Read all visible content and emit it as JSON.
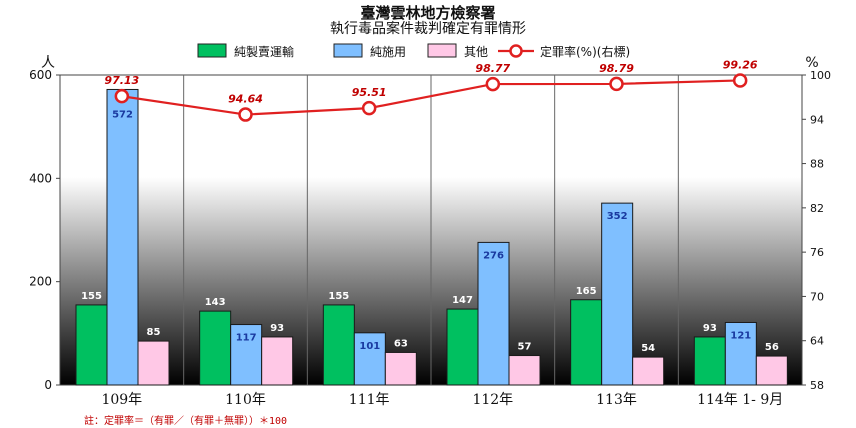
{
  "title": "臺灣雲林地方檢察署",
  "subtitle": "執行毒品案件裁判確定有罪情形",
  "footnote": "註：定罪率＝（有罪／（有罪＋無罪））＊100",
  "colors": {
    "trafficking": "#00c060",
    "use": "#7fbfff",
    "other": "#ffc8e6",
    "rate_line": "#e02020",
    "rate_label": "#c00000",
    "use_label": "#1a3aa0"
  },
  "chart_data": {
    "type": "bar",
    "title": "臺灣雲林地方檢察署",
    "subtitle": "執行毒品案件裁判確定有罪情形",
    "categories": [
      "109年",
      "110年",
      "111年",
      "112年",
      "113年",
      "114年 1- 9月"
    ],
    "series": [
      {
        "name": "純製賣運輸",
        "type": "bar",
        "values": [
          155,
          143,
          155,
          147,
          165,
          93
        ]
      },
      {
        "name": "純施用",
        "type": "bar",
        "values": [
          572,
          117,
          101,
          276,
          352,
          121
        ]
      },
      {
        "name": "其他",
        "type": "bar",
        "values": [
          85,
          93,
          63,
          57,
          54,
          56
        ]
      },
      {
        "name": "定罪率(%)(右標)",
        "type": "line",
        "axis": "right",
        "values": [
          97.13,
          94.64,
          95.51,
          98.77,
          98.79,
          99.26
        ]
      }
    ],
    "ylabel": "人",
    "y2label": "%",
    "ylim": [
      0,
      600
    ],
    "yticks": [
      0,
      200,
      400,
      600
    ],
    "y2lim": [
      58,
      100
    ],
    "y2ticks": [
      58,
      64,
      70,
      76,
      82,
      88,
      94,
      100
    ],
    "legend": "top-center",
    "grid": false
  }
}
